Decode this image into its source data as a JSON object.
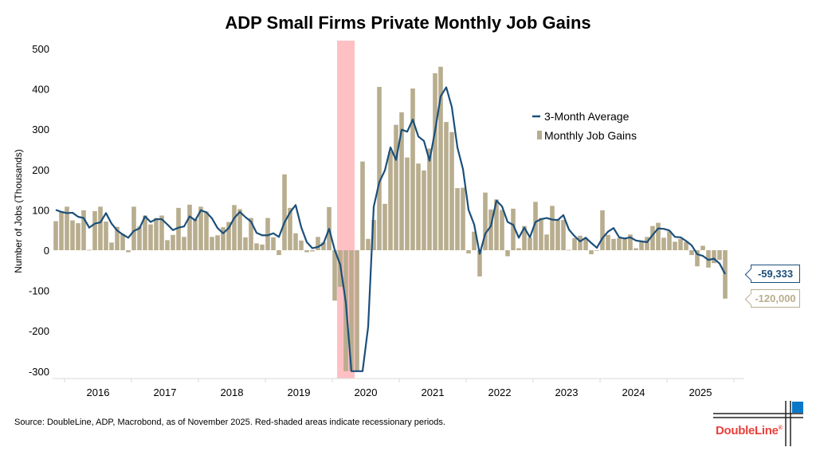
{
  "chart_data": {
    "type": "bar+line",
    "title": "ADP Small Firms Private Monthly Job Gains",
    "ylabel": "Number of Jobs (Thousands)",
    "xlabel": "",
    "ylim": [
      -300,
      500
    ],
    "yticks": [
      "500",
      "400",
      "300",
      "200",
      "100",
      "0",
      "-100",
      "-200",
      "-300"
    ],
    "xticks": [
      "2016",
      "2017",
      "2018",
      "2019",
      "2020",
      "2021",
      "2022",
      "2023",
      "2024",
      "2025"
    ],
    "grid": false,
    "legend_position": "upper-right",
    "recession_shading": {
      "start": "2020-02",
      "end": "2020-04",
      "color": "#ffc0c4"
    },
    "x": [
      "2015-11",
      "2015-12",
      "2016-01",
      "2016-02",
      "2016-03",
      "2016-04",
      "2016-05",
      "2016-06",
      "2016-07",
      "2016-08",
      "2016-09",
      "2016-10",
      "2016-11",
      "2016-12",
      "2017-01",
      "2017-02",
      "2017-03",
      "2017-04",
      "2017-05",
      "2017-06",
      "2017-07",
      "2017-08",
      "2017-09",
      "2017-10",
      "2017-11",
      "2017-12",
      "2018-01",
      "2018-02",
      "2018-03",
      "2018-04",
      "2018-05",
      "2018-06",
      "2018-07",
      "2018-08",
      "2018-09",
      "2018-10",
      "2018-11",
      "2018-12",
      "2019-01",
      "2019-02",
      "2019-03",
      "2019-04",
      "2019-05",
      "2019-06",
      "2019-07",
      "2019-08",
      "2019-09",
      "2019-10",
      "2019-11",
      "2019-12",
      "2020-01",
      "2020-02",
      "2020-03",
      "2020-04",
      "2020-05",
      "2020-06",
      "2020-07",
      "2020-08",
      "2020-09",
      "2020-10",
      "2020-11",
      "2020-12",
      "2021-01",
      "2021-02",
      "2021-03",
      "2021-04",
      "2021-05",
      "2021-06",
      "2021-07",
      "2021-08",
      "2021-09",
      "2021-10",
      "2021-11",
      "2021-12",
      "2022-01",
      "2022-02",
      "2022-03",
      "2022-04",
      "2022-05",
      "2022-06",
      "2022-07",
      "2022-08",
      "2022-09",
      "2022-10",
      "2022-11",
      "2022-12",
      "2023-01",
      "2023-02",
      "2023-03",
      "2023-04",
      "2023-05",
      "2023-06",
      "2023-07",
      "2023-08",
      "2023-09",
      "2023-10",
      "2023-11",
      "2023-12",
      "2024-01",
      "2024-02",
      "2024-03",
      "2024-04",
      "2024-05",
      "2024-06",
      "2024-07",
      "2024-08",
      "2024-09",
      "2024-10",
      "2024-11",
      "2024-12",
      "2025-01",
      "2025-02",
      "2025-03",
      "2025-04",
      "2025-05",
      "2025-06",
      "2025-07",
      "2025-08",
      "2025-09",
      "2025-10",
      "2025-11"
    ],
    "series": [
      {
        "name": "Monthly Job Gains",
        "type": "bar",
        "color": "#b8ad8e",
        "values": [
          72,
          97,
          108,
          74,
          67,
          99,
          1,
          97,
          108,
          71,
          19,
          58,
          41,
          -5,
          108,
          59,
          86,
          64,
          80,
          86,
          25,
          38,
          105,
          33,
          113,
          77,
          108,
          96,
          33,
          37,
          57,
          70,
          112,
          102,
          32,
          80,
          17,
          14,
          80,
          32,
          -12,
          188,
          105,
          42,
          24,
          -5,
          -3,
          33,
          20,
          107,
          -125,
          -91,
          -300,
          -300,
          -300,
          220,
          28,
          75,
          405,
          115,
          245,
          311,
          342,
          230,
          401,
          215,
          198,
          252,
          439,
          455,
          318,
          293,
          154,
          155,
          -8,
          46,
          -65,
          143,
          101,
          126,
          100,
          -15,
          103,
          5,
          60,
          31,
          120,
          80,
          39,
          110,
          77,
          75,
          1,
          30,
          36,
          28,
          -10,
          0,
          99,
          38,
          28,
          30,
          28,
          39,
          5,
          21,
          33,
          60,
          68,
          31,
          47,
          21,
          28,
          21,
          -12,
          -40,
          11,
          -43,
          -32,
          -24,
          -120
        ]
      },
      {
        "name": "3-Month Average",
        "type": "line",
        "color": "#1b4f7a",
        "values": [
          100,
          95,
          92,
          93,
          83,
          80,
          56,
          66,
          69,
          92,
          66,
          49,
          39,
          31,
          48,
          54,
          84,
          70,
          77,
          77,
          64,
          50,
          56,
          59,
          84,
          74,
          99,
          94,
          79,
          55,
          42,
          55,
          80,
          95,
          82,
          71,
          43,
          37,
          37,
          42,
          33,
          69,
          94,
          112,
          57,
          20,
          5,
          8,
          17,
          53,
          1,
          -36,
          -130,
          -300,
          -300,
          -300,
          -190,
          108,
          169,
          198,
          255,
          224,
          299,
          294,
          324,
          282,
          271,
          222,
          296,
          382,
          404,
          355,
          255,
          201,
          100,
          64,
          -9,
          41,
          60,
          123,
          109,
          70,
          63,
          31,
          56,
          32,
          70,
          77,
          80,
          76,
          75,
          87,
          51,
          35,
          22,
          31,
          18,
          6,
          30,
          46,
          55,
          32,
          29,
          32,
          24,
          22,
          20,
          38,
          54,
          53,
          49,
          33,
          32,
          23,
          12,
          -10,
          -14,
          -24,
          -21,
          -33,
          -59.333
        ]
      }
    ],
    "callouts": {
      "line_last": "-59,333",
      "bar_last": "-120,000"
    }
  },
  "source": "Source: DoubleLine, ADP, Macrobond, as of November 2025. Red-shaded areas indicate recessionary periods.",
  "logo": {
    "text": "DoubleLine",
    "registered": "®",
    "accent": "#0a78c8",
    "text_color": "#e8413c"
  }
}
